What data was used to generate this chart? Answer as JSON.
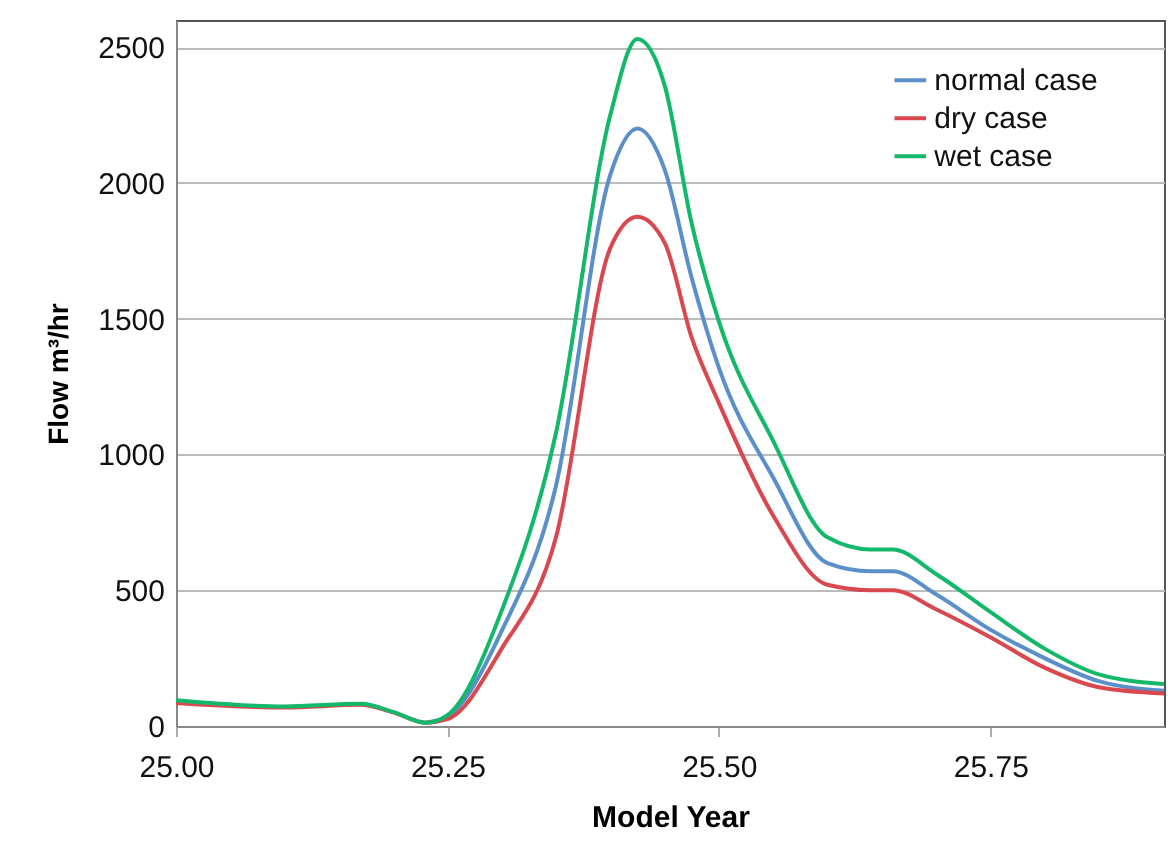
{
  "chart_data": {
    "type": "line",
    "xlabel": "Model Year",
    "ylabel": "Flow m³/hr",
    "x": [
      25.0,
      25.1,
      25.17,
      25.2,
      25.23,
      25.25,
      25.3,
      25.35,
      25.4,
      25.425,
      25.45,
      25.475,
      25.5,
      25.55,
      25.6,
      25.64,
      25.66,
      25.7,
      25.75,
      25.8,
      25.85,
      25.91
    ],
    "series": [
      {
        "name": "normal case",
        "color": "#5b8fc9",
        "values": [
          null,
          null,
          null,
          null,
          12,
          35,
          350,
          885,
          2030,
          2200,
          2050,
          1650,
          1320,
          915,
          600,
          570,
          570,
          485,
          355,
          250,
          165,
          130
        ]
      },
      {
        "name": "dry case",
        "color": "#d9474f",
        "values": [
          85,
          68,
          78,
          50,
          12,
          25,
          285,
          695,
          1760,
          1875,
          1780,
          1430,
          1190,
          775,
          520,
          500,
          500,
          430,
          327,
          215,
          143,
          120
        ]
      },
      {
        "name": "wet case",
        "color": "#14b86a",
        "values": [
          95,
          72,
          82,
          52,
          12,
          40,
          425,
          1080,
          2250,
          2530,
          2360,
          1850,
          1490,
          1050,
          695,
          650,
          650,
          560,
          420,
          285,
          190,
          155
        ]
      }
    ],
    "xlim": [
      25.0,
      25.91
    ],
    "xticks": [
      {
        "value": 25.0,
        "label": "25.00"
      },
      {
        "value": 25.25,
        "label": "25.25"
      },
      {
        "value": 25.5,
        "label": "25.50"
      },
      {
        "value": 25.75,
        "label": "25.75"
      }
    ],
    "ylim": [
      0,
      2600
    ],
    "yticks": [
      0,
      500,
      1000,
      1500,
      2000,
      2500
    ],
    "grid": "y",
    "legend": "top right",
    "marker": "none",
    "line_style": "solid"
  }
}
